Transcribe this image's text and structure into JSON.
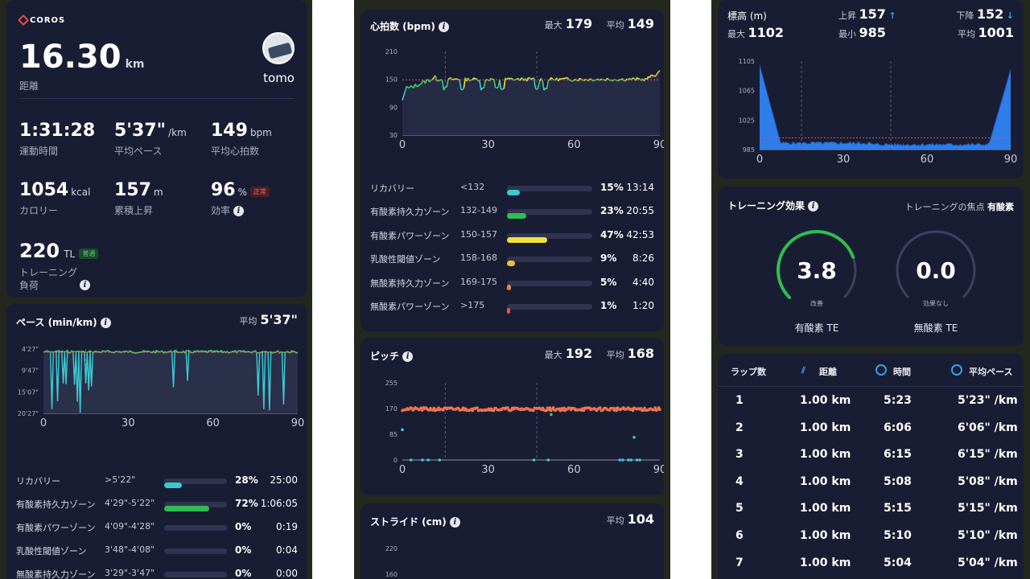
{
  "summary": {
    "brand": "COROS",
    "distance_value": "16.30",
    "distance_unit": "km",
    "distance_label": "距離",
    "user_name": "tomo",
    "stats": [
      {
        "value": "1:31:28",
        "unit": "",
        "label": "運動時間"
      },
      {
        "value": "5'37\"",
        "unit": "/km",
        "label": "平均ペース"
      },
      {
        "value": "149",
        "unit": "bpm",
        "label": "平均心拍数"
      },
      {
        "value": "1054",
        "unit": "kcal",
        "label": "カロリー"
      },
      {
        "value": "157",
        "unit": "m",
        "label": "累積上昇"
      },
      {
        "value": "96",
        "unit": "%",
        "label": "効率",
        "tag": "正常"
      }
    ],
    "load_value": "220",
    "load_unit": "TL",
    "load_tag": "普通",
    "load_label_1": "トレーニング",
    "load_label_2": "負荷"
  },
  "pace": {
    "title": "ペース (min/km)",
    "avg_label": "平均",
    "avg_value": "5'37\"",
    "y_ticks": [
      "4'27\"",
      "9'47\"",
      "15'07\"",
      "20'27\""
    ],
    "x_ticks": [
      "0",
      "30",
      "60",
      "90"
    ],
    "zones": [
      {
        "name": "リカバリー",
        "range": ">5'22\"",
        "pct": "28%",
        "time": "25:00",
        "fill": 0.28,
        "color": "#3cc8d2"
      },
      {
        "name": "有酸素持久力ゾーン",
        "range": "4'29\"-5'22\"",
        "pct": "72%",
        "time": "1:06:05",
        "fill": 0.72,
        "color": "#2fbe4f"
      },
      {
        "name": "有酸素パワーゾーン",
        "range": "4'09\"-4'28\"",
        "pct": "0%",
        "time": "0:19",
        "fill": 0.0,
        "color": "#f2d43c"
      },
      {
        "name": "乳酸性閾値ゾーン",
        "range": "3'48\"-4'08\"",
        "pct": "0%",
        "time": "0:04",
        "fill": 0.0,
        "color": "#f0b43a"
      },
      {
        "name": "無酸素持久力ゾーン",
        "range": "3'29\"-3'47\"",
        "pct": "0%",
        "time": "0:00",
        "fill": 0.0,
        "color": "#f07c3a"
      }
    ]
  },
  "heart": {
    "title": "心拍数 (bpm)",
    "max_label": "最大",
    "max_value": "179",
    "avg_label": "平均",
    "avg_value": "149",
    "y_ticks": [
      "210",
      "150",
      "90",
      "30"
    ],
    "x_ticks": [
      "0",
      "30",
      "60",
      "90"
    ],
    "zones": [
      {
        "name": "リカバリー",
        "range": "<132",
        "pct": "15%",
        "time": "13:14",
        "fill": 0.15,
        "color": "#3cc8d2"
      },
      {
        "name": "有酸素持久力ゾーン",
        "range": "132-149",
        "pct": "23%",
        "time": "20:55",
        "fill": 0.23,
        "color": "#2fbe4f"
      },
      {
        "name": "有酸素パワーゾーン",
        "range": "150-157",
        "pct": "47%",
        "time": "42:53",
        "fill": 0.47,
        "color": "#f2e03c"
      },
      {
        "name": "乳酸性閾値ゾーン",
        "range": "158-168",
        "pct": "9%",
        "time": "8:26",
        "fill": 0.09,
        "color": "#f0c03a"
      },
      {
        "name": "無酸素持久力ゾーン",
        "range": "169-175",
        "pct": "5%",
        "time": "4:40",
        "fill": 0.05,
        "color": "#f0843a"
      },
      {
        "name": "無酸素パワーゾーン",
        "range": ">175",
        "pct": "1%",
        "time": "1:20",
        "fill": 0.01,
        "color": "#e8504a"
      }
    ]
  },
  "cadence": {
    "title": "ピッチ",
    "max_label": "最大",
    "max_value": "192",
    "avg_label": "平均",
    "avg_value": "168",
    "y_ticks": [
      "255",
      "170",
      "85",
      "0"
    ],
    "x_ticks": [
      "0",
      "30",
      "60",
      "90"
    ]
  },
  "stride": {
    "title": "ストライド (cm)",
    "avg_label": "平均",
    "avg_value": "104",
    "y_ticks": [
      "220",
      "160"
    ]
  },
  "elevation": {
    "title": "標高 (m)",
    "up_label": "上昇",
    "up_value": "157",
    "down_label": "下降",
    "down_value": "152",
    "max_label": "最大",
    "max_value": "1102",
    "min_label": "最小",
    "min_value": "985",
    "avg_label": "平均",
    "avg_value": "1001",
    "y_ticks": [
      "1105",
      "1065",
      "1025",
      "985"
    ],
    "x_ticks": [
      "0",
      "30",
      "60",
      "90"
    ]
  },
  "training_effect": {
    "title": "トレーニング効果",
    "focus_label": "トレーニングの焦点",
    "focus_value": "有酸素",
    "aerobic_value": "3.8",
    "aerobic_desc": "改善",
    "aerobic_label": "有酸素 TE",
    "aerobic_level": 0.76,
    "anaerobic_value": "0.0",
    "anaerobic_desc": "効果なし",
    "anaerobic_label": "無酸素 TE",
    "anaerobic_level": 0.0
  },
  "laps": {
    "headers": [
      "ラップ数",
      "距離",
      "時間",
      "平均ペース"
    ],
    "rows": [
      [
        "1",
        "1.00 km",
        "5:23",
        "5'23\" /km"
      ],
      [
        "2",
        "1.00 km",
        "6:06",
        "6'06\" /km"
      ],
      [
        "3",
        "1.00 km",
        "6:15",
        "6'15\" /km"
      ],
      [
        "4",
        "1.00 km",
        "5:08",
        "5'08\" /km"
      ],
      [
        "5",
        "1.00 km",
        "5:15",
        "5'15\" /km"
      ],
      [
        "6",
        "1.00 km",
        "5:10",
        "5'10\" /km"
      ],
      [
        "7",
        "1.00 km",
        "5:04",
        "5'04\" /km"
      ]
    ]
  },
  "colors": {
    "card": "#191d33",
    "accent_green": "#2fbe4f",
    "accent_cyan": "#3cc8d2",
    "accent_orange": "#f07c3a",
    "accent_blue": "#2f7de8"
  }
}
